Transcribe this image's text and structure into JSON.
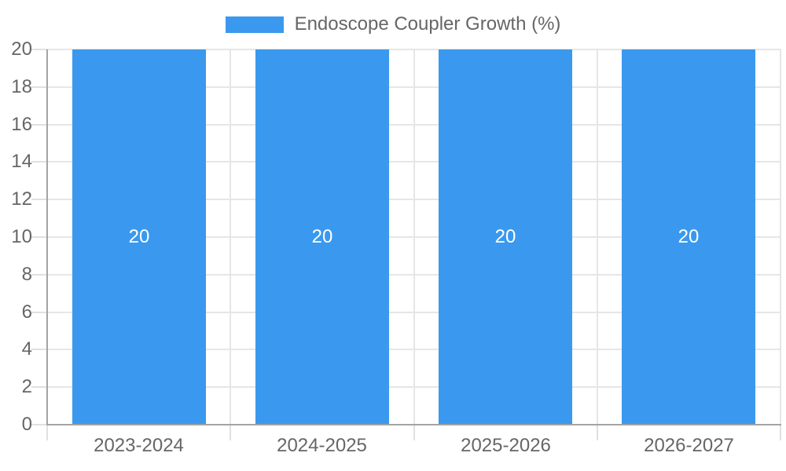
{
  "chart_data": {
    "type": "bar",
    "legend_label": "Endoscope Coupler Growth (%)",
    "legend_position": "top",
    "categories": [
      "2023-2024",
      "2024-2025",
      "2025-2026",
      "2026-2027"
    ],
    "values": [
      20,
      20,
      20,
      20
    ],
    "bar_value_labels": [
      "20",
      "20",
      "20",
      "20"
    ],
    "yticks": [
      0,
      2,
      4,
      6,
      8,
      10,
      12,
      14,
      16,
      18,
      20
    ],
    "ylim": [
      0,
      20
    ],
    "grid": true,
    "xlabel": "",
    "ylabel": "",
    "colors": {
      "bar": "#3A99EE",
      "bar_label": "#FFFFFF",
      "grid": "#E6E6E6",
      "tick_mark": "#E0E0E0",
      "axis_line": "#A3A3A3",
      "tick_label": "#666666",
      "legend_text": "#666666",
      "background": "#FFFFFF"
    }
  }
}
